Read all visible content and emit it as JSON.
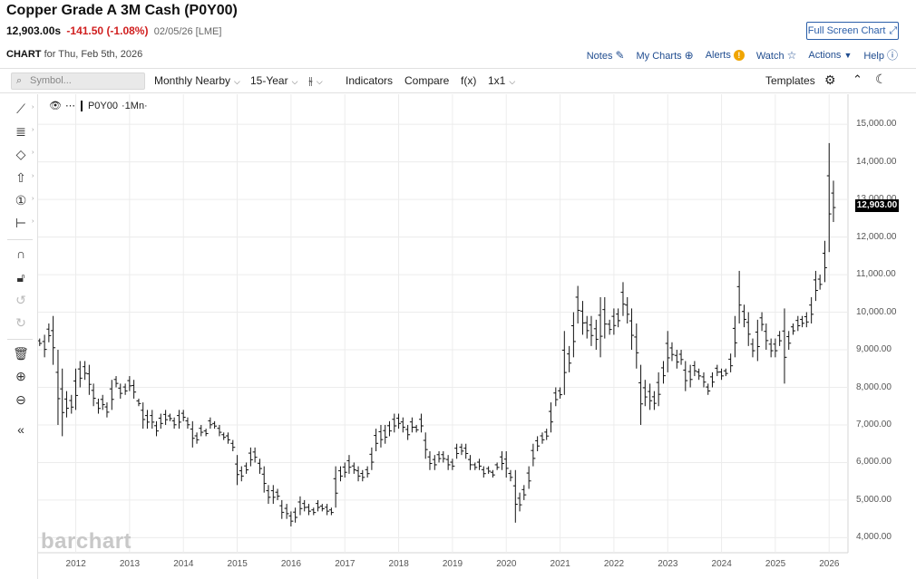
{
  "header": {
    "title": "Copper Grade A 3M Cash (P0Y00)",
    "last": "12,903.00s",
    "change": "-141.50 (-1.08%)",
    "date": "02/05/26 [LME]",
    "fullscreen_label": "Full Screen Chart",
    "chart_label": "CHART",
    "chart_for": "for Thu, Feb 5th, 2026"
  },
  "links": {
    "notes": "Notes",
    "my_charts": "My Charts",
    "alerts": "Alerts",
    "watch": "Watch",
    "actions": "Actions",
    "help": "Help"
  },
  "toolbar": {
    "symbol_placeholder": "Symbol...",
    "period": "Monthly Nearby",
    "range": "15-Year",
    "indicators": "Indicators",
    "compare": "Compare",
    "fx": "f(x)",
    "layout": "1x1",
    "templates": "Templates"
  },
  "legend": {
    "symbol": "P0Y00",
    "interval": "·1Mn·"
  },
  "price_tag": "12,903.00",
  "watermark": "barchart",
  "colors": {
    "link": "#1f4c8f",
    "negative": "#d01f1f",
    "bars": "#111111"
  },
  "chart_data": {
    "type": "bar",
    "style": "ohlc",
    "x_tick_labels": [
      "2012",
      "2013",
      "2014",
      "2015",
      "2016",
      "2017",
      "2018",
      "2019",
      "2020",
      "2021",
      "2022",
      "2023",
      "2024",
      "2025",
      "2026"
    ],
    "y_tick_labels": [
      "15,000.00",
      "14,000.00",
      "13,000.00",
      "12,000.00",
      "11,000.00",
      "10,000.00",
      "9,000.00",
      "8,000.00",
      "7,000.00",
      "6,000.00",
      "5,000.00",
      "4,000.00"
    ],
    "ylim": [
      3600,
      15800
    ],
    "xlim": [
      2011.3,
      2026.35
    ],
    "grid": true,
    "series": [
      {
        "name": "P0Y00",
        "points": [
          [
            2011.33,
            9300,
            9100
          ],
          [
            2011.42,
            9400,
            8800
          ],
          [
            2011.5,
            9700,
            9200
          ],
          [
            2011.58,
            9900,
            8600
          ],
          [
            2011.67,
            9000,
            7000
          ],
          [
            2011.75,
            8500,
            6700
          ],
          [
            2011.83,
            7900,
            7200
          ],
          [
            2011.92,
            7800,
            7300
          ],
          [
            2012.0,
            8500,
            7400
          ],
          [
            2012.08,
            8700,
            8000
          ],
          [
            2012.17,
            8700,
            8200
          ],
          [
            2012.25,
            8600,
            7800
          ],
          [
            2012.33,
            8100,
            7500
          ],
          [
            2012.42,
            7700,
            7300
          ],
          [
            2012.5,
            7800,
            7400
          ],
          [
            2012.58,
            7600,
            7200
          ],
          [
            2012.67,
            8200,
            7400
          ],
          [
            2012.75,
            8300,
            8000
          ],
          [
            2012.83,
            8100,
            7700
          ],
          [
            2012.92,
            8100,
            7800
          ],
          [
            2013.0,
            8300,
            7900
          ],
          [
            2013.08,
            8200,
            7700
          ],
          [
            2013.17,
            7700,
            7500
          ],
          [
            2013.25,
            7600,
            6900
          ],
          [
            2013.33,
            7400,
            6900
          ],
          [
            2013.42,
            7400,
            6900
          ],
          [
            2013.5,
            7100,
            6700
          ],
          [
            2013.58,
            7300,
            6900
          ],
          [
            2013.67,
            7400,
            7000
          ],
          [
            2013.75,
            7300,
            7100
          ],
          [
            2013.83,
            7200,
            6900
          ],
          [
            2013.92,
            7400,
            6900
          ],
          [
            2014.0,
            7400,
            7100
          ],
          [
            2014.08,
            7200,
            6900
          ],
          [
            2014.17,
            7100,
            6400
          ],
          [
            2014.25,
            6800,
            6500
          ],
          [
            2014.33,
            7000,
            6700
          ],
          [
            2014.42,
            6900,
            6700
          ],
          [
            2014.5,
            7200,
            6900
          ],
          [
            2014.58,
            7100,
            6900
          ],
          [
            2014.67,
            7000,
            6700
          ],
          [
            2014.75,
            6800,
            6600
          ],
          [
            2014.83,
            6800,
            6500
          ],
          [
            2014.92,
            6600,
            6300
          ],
          [
            2015.0,
            6200,
            5400
          ],
          [
            2015.08,
            5900,
            5500
          ],
          [
            2015.17,
            6000,
            5700
          ],
          [
            2015.25,
            6400,
            5900
          ],
          [
            2015.33,
            6400,
            6000
          ],
          [
            2015.42,
            6100,
            5700
          ],
          [
            2015.5,
            5900,
            5200
          ],
          [
            2015.58,
            5400,
            4900
          ],
          [
            2015.67,
            5400,
            4900
          ],
          [
            2015.75,
            5300,
            5000
          ],
          [
            2015.83,
            5000,
            4500
          ],
          [
            2015.92,
            4900,
            4500
          ],
          [
            2016.0,
            4700,
            4300
          ],
          [
            2016.08,
            4800,
            4400
          ],
          [
            2016.17,
            5100,
            4600
          ],
          [
            2016.25,
            5000,
            4700
          ],
          [
            2016.33,
            4900,
            4600
          ],
          [
            2016.42,
            4800,
            4600
          ],
          [
            2016.5,
            5000,
            4700
          ],
          [
            2016.58,
            4900,
            4700
          ],
          [
            2016.67,
            4900,
            4600
          ],
          [
            2016.75,
            4800,
            4600
          ],
          [
            2016.83,
            5900,
            4800
          ],
          [
            2016.92,
            5900,
            5500
          ],
          [
            2017.0,
            6000,
            5600
          ],
          [
            2017.08,
            6200,
            5700
          ],
          [
            2017.17,
            6000,
            5700
          ],
          [
            2017.25,
            5900,
            5500
          ],
          [
            2017.33,
            5800,
            5500
          ],
          [
            2017.42,
            5900,
            5600
          ],
          [
            2017.5,
            6400,
            5800
          ],
          [
            2017.58,
            6900,
            6300
          ],
          [
            2017.67,
            7000,
            6400
          ],
          [
            2017.75,
            7000,
            6500
          ],
          [
            2017.83,
            7100,
            6700
          ],
          [
            2017.92,
            7300,
            6800
          ],
          [
            2018.0,
            7300,
            6900
          ],
          [
            2018.08,
            7200,
            6800
          ],
          [
            2018.17,
            7000,
            6600
          ],
          [
            2018.25,
            7200,
            6800
          ],
          [
            2018.33,
            7000,
            6800
          ],
          [
            2018.42,
            7300,
            6800
          ],
          [
            2018.5,
            6800,
            6100
          ],
          [
            2018.58,
            6300,
            5800
          ],
          [
            2018.67,
            6200,
            5800
          ],
          [
            2018.75,
            6300,
            6000
          ],
          [
            2018.83,
            6300,
            6000
          ],
          [
            2018.92,
            6200,
            5800
          ],
          [
            2019.0,
            6100,
            5800
          ],
          [
            2019.08,
            6500,
            6100
          ],
          [
            2019.17,
            6500,
            6200
          ],
          [
            2019.25,
            6500,
            6100
          ],
          [
            2019.33,
            6200,
            5800
          ],
          [
            2019.42,
            6000,
            5800
          ],
          [
            2019.5,
            6100,
            5800
          ],
          [
            2019.58,
            5900,
            5600
          ],
          [
            2019.67,
            5900,
            5700
          ],
          [
            2019.75,
            5800,
            5600
          ],
          [
            2019.83,
            6000,
            5800
          ],
          [
            2019.92,
            6300,
            5800
          ],
          [
            2020.0,
            6300,
            5600
          ],
          [
            2020.08,
            5800,
            5500
          ],
          [
            2020.17,
            5800,
            4400
          ],
          [
            2020.25,
            5200,
            4700
          ],
          [
            2020.33,
            5400,
            5000
          ],
          [
            2020.42,
            5900,
            5300
          ],
          [
            2020.5,
            6500,
            5900
          ],
          [
            2020.58,
            6700,
            6300
          ],
          [
            2020.67,
            6800,
            6500
          ],
          [
            2020.75,
            6900,
            6600
          ],
          [
            2020.83,
            7600,
            6800
          ],
          [
            2020.92,
            8000,
            7500
          ],
          [
            2021.0,
            8000,
            7700
          ],
          [
            2021.08,
            9500,
            7800
          ],
          [
            2021.17,
            9100,
            8400
          ],
          [
            2021.25,
            10000,
            8800
          ],
          [
            2021.33,
            10700,
            9700
          ],
          [
            2021.42,
            10300,
            9400
          ],
          [
            2021.5,
            9900,
            9300
          ],
          [
            2021.58,
            9900,
            9100
          ],
          [
            2021.67,
            9800,
            9000
          ],
          [
            2021.75,
            10400,
            8800
          ],
          [
            2021.83,
            10400,
            9300
          ],
          [
            2021.92,
            9800,
            9400
          ],
          [
            2022.0,
            10100,
            9400
          ],
          [
            2022.08,
            10100,
            9600
          ],
          [
            2022.17,
            10800,
            9900
          ],
          [
            2022.25,
            10400,
            9700
          ],
          [
            2022.33,
            10100,
            9000
          ],
          [
            2022.42,
            9700,
            8500
          ],
          [
            2022.5,
            8600,
            7000
          ],
          [
            2022.58,
            8200,
            7500
          ],
          [
            2022.67,
            8100,
            7400
          ],
          [
            2022.75,
            7900,
            7400
          ],
          [
            2022.83,
            8400,
            7500
          ],
          [
            2022.92,
            8700,
            8100
          ],
          [
            2023.0,
            9500,
            8400
          ],
          [
            2023.08,
            9200,
            8700
          ],
          [
            2023.17,
            9000,
            8500
          ],
          [
            2023.25,
            9000,
            8600
          ],
          [
            2023.33,
            8700,
            7900
          ],
          [
            2023.42,
            8600,
            8000
          ],
          [
            2023.5,
            8700,
            8300
          ],
          [
            2023.58,
            8500,
            8200
          ],
          [
            2023.67,
            8400,
            8000
          ],
          [
            2023.75,
            8100,
            7800
          ],
          [
            2023.83,
            8400,
            8000
          ],
          [
            2023.92,
            8600,
            8300
          ],
          [
            2024.0,
            8500,
            8200
          ],
          [
            2024.08,
            8500,
            8300
          ],
          [
            2024.17,
            8900,
            8400
          ],
          [
            2024.25,
            9900,
            8800
          ],
          [
            2024.33,
            11100,
            9700
          ],
          [
            2024.42,
            10200,
            9600
          ],
          [
            2024.5,
            10000,
            9100
          ],
          [
            2024.58,
            9300,
            8800
          ],
          [
            2024.67,
            9800,
            8700
          ],
          [
            2024.75,
            10000,
            9500
          ],
          [
            2024.83,
            9700,
            9000
          ],
          [
            2024.92,
            9300,
            8800
          ],
          [
            2025.0,
            9300,
            8800
          ],
          [
            2025.08,
            9500,
            9100
          ],
          [
            2025.17,
            10100,
            8100
          ],
          [
            2025.25,
            9500,
            9000
          ],
          [
            2025.33,
            9700,
            9400
          ],
          [
            2025.42,
            9900,
            9500
          ],
          [
            2025.5,
            9900,
            9600
          ],
          [
            2025.58,
            10000,
            9600
          ],
          [
            2025.67,
            10400,
            9700
          ],
          [
            2025.75,
            11100,
            10300
          ],
          [
            2025.83,
            11000,
            10600
          ],
          [
            2025.92,
            11900,
            10800
          ],
          [
            2026.0,
            14500,
            11600
          ],
          [
            2026.08,
            13500,
            12400
          ]
        ]
      }
    ]
  }
}
